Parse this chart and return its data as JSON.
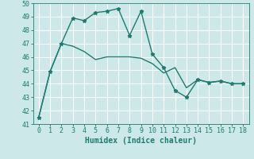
{
  "xlabel": "Humidex (Indice chaleur)",
  "xlim": [
    -0.5,
    18.5
  ],
  "ylim": [
    41,
    50
  ],
  "yticks": [
    41,
    42,
    43,
    44,
    45,
    46,
    47,
    48,
    49,
    50
  ],
  "xticks": [
    0,
    1,
    2,
    3,
    4,
    5,
    6,
    7,
    8,
    9,
    10,
    11,
    12,
    13,
    14,
    15,
    16,
    17,
    18
  ],
  "background_color": "#cce8e8",
  "grid_color": "#ffffff",
  "line_color": "#1e7b70",
  "line1_x": [
    0,
    1,
    2,
    3,
    4,
    5,
    6,
    7,
    8,
    9,
    10,
    11,
    12,
    13,
    14,
    15,
    16,
    17,
    18
  ],
  "line1_y": [
    41.5,
    44.9,
    47.0,
    48.9,
    48.7,
    49.3,
    49.4,
    49.6,
    47.6,
    49.4,
    46.2,
    45.2,
    43.5,
    43.0,
    44.3,
    44.1,
    44.2,
    44.0,
    44.0
  ],
  "line2_x": [
    0,
    1,
    2,
    3,
    4,
    5,
    6,
    7,
    8,
    9,
    10,
    11,
    12,
    13,
    14,
    15,
    16,
    17,
    18
  ],
  "line2_y": [
    41.5,
    44.9,
    47.0,
    46.8,
    46.4,
    45.8,
    46.0,
    46.0,
    46.0,
    45.9,
    45.5,
    44.8,
    45.2,
    43.7,
    44.3,
    44.1,
    44.2,
    44.0,
    44.0
  ],
  "markersize": 3.5,
  "linewidth": 1.0,
  "tick_labelsize": 6,
  "xlabel_fontsize": 7
}
